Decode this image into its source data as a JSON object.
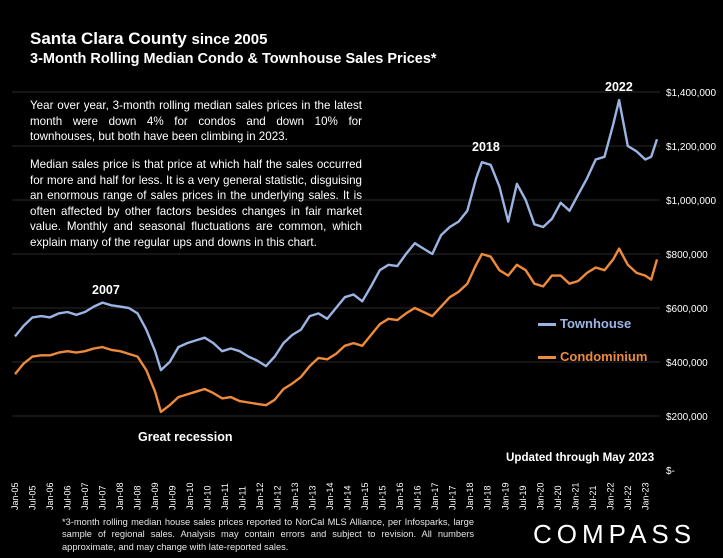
{
  "header": {
    "title": "Santa Clara County",
    "title_suffix": "since 2005",
    "subtitle": "3-Month Rolling Median Condo & Townhouse Sales Prices*"
  },
  "text": {
    "para1": "Year over year, 3-month rolling median sales prices in the latest month were down 4% for condos and down 10% for townhouses, but both have been climbing in 2023.",
    "para2": "Median sales price is that price at which half the sales occurred for more and half for less. It is a very general statistic, disguising an enormous range of sales prices in the underlying sales. It is often affected by other factors besides changes in fair market value. Monthly and seasonal fluctuations are common, which explain many of the regular ups and downs in this chart.",
    "updated": "Updated through May 2023",
    "footnote": "*3-month rolling median house sales prices reported to NorCal MLS Alliance, per Infosparks, large sample of regional sales. Analysis may contain errors and subject to revision. All numbers approximate, and may change with late-reported sales.",
    "logo": "COMPASS"
  },
  "colors": {
    "townhouse": "#9bb4e3",
    "condominium": "#ee8a3c",
    "background": "#000000",
    "gridline": "#555555"
  },
  "chart_data": {
    "type": "line",
    "grid": "horizontal",
    "ylim": [
      0,
      1400000
    ],
    "y_ticks": [
      "$-",
      "$200,000",
      "$400,000",
      "$600,000",
      "$800,000",
      "$1,000,000",
      "$1,200,000",
      "$1,400,000"
    ],
    "y_tick_values": [
      0,
      200000,
      400000,
      600000,
      800000,
      1000000,
      1200000,
      1400000
    ],
    "x_ticks": [
      "Jan-05",
      "Jul-05",
      "Jan-06",
      "Jul-06",
      "Jan-07",
      "Jul-07",
      "Jan-08",
      "Jul-08",
      "Jan-09",
      "Jul-09",
      "Jan-10",
      "Jul-10",
      "Jan-11",
      "Jul-11",
      "Jan-12",
      "Jul-12",
      "Jan-13",
      "Jul-13",
      "Jan-14",
      "Jul-14",
      "Jan-15",
      "Jul-15",
      "Jan-16",
      "Jul-16",
      "Jan-17",
      "Jul-17",
      "Jan-18",
      "Jul-18",
      "Jan-19",
      "Jul-19",
      "Jan-20",
      "Jul-20",
      "Jan-21",
      "Jul-21",
      "Jan-22",
      "Jul-22",
      "Jan-23"
    ],
    "x_range": [
      "Jan-05",
      "May-23"
    ],
    "annotations": [
      {
        "text": "2007",
        "at": "2007-07"
      },
      {
        "text": "2018",
        "at": "2018-04"
      },
      {
        "text": "2022",
        "at": "2022-04"
      },
      {
        "text": "Great recession",
        "at": "2009-06"
      }
    ],
    "legend_position": "right",
    "series": [
      {
        "name": "Townhouse",
        "color": "#9bb4e3",
        "points": [
          [
            "2005-01",
            495000
          ],
          [
            "2005-04",
            535000
          ],
          [
            "2005-07",
            565000
          ],
          [
            "2005-10",
            570000
          ],
          [
            "2006-01",
            565000
          ],
          [
            "2006-04",
            580000
          ],
          [
            "2006-07",
            585000
          ],
          [
            "2006-10",
            575000
          ],
          [
            "2007-01",
            585000
          ],
          [
            "2007-04",
            605000
          ],
          [
            "2007-07",
            620000
          ],
          [
            "2007-10",
            610000
          ],
          [
            "2008-01",
            605000
          ],
          [
            "2008-04",
            600000
          ],
          [
            "2008-07",
            580000
          ],
          [
            "2008-10",
            520000
          ],
          [
            "2009-01",
            440000
          ],
          [
            "2009-03",
            370000
          ],
          [
            "2009-06",
            400000
          ],
          [
            "2009-09",
            455000
          ],
          [
            "2009-12",
            470000
          ],
          [
            "2010-03",
            480000
          ],
          [
            "2010-06",
            490000
          ],
          [
            "2010-09",
            470000
          ],
          [
            "2010-12",
            440000
          ],
          [
            "2011-03",
            450000
          ],
          [
            "2011-06",
            440000
          ],
          [
            "2011-09",
            420000
          ],
          [
            "2011-12",
            405000
          ],
          [
            "2012-03",
            385000
          ],
          [
            "2012-06",
            420000
          ],
          [
            "2012-09",
            470000
          ],
          [
            "2012-12",
            500000
          ],
          [
            "2013-03",
            520000
          ],
          [
            "2013-06",
            570000
          ],
          [
            "2013-09",
            580000
          ],
          [
            "2013-12",
            560000
          ],
          [
            "2014-03",
            600000
          ],
          [
            "2014-06",
            640000
          ],
          [
            "2014-09",
            650000
          ],
          [
            "2014-12",
            625000
          ],
          [
            "2015-03",
            680000
          ],
          [
            "2015-06",
            740000
          ],
          [
            "2015-09",
            760000
          ],
          [
            "2015-12",
            755000
          ],
          [
            "2016-03",
            800000
          ],
          [
            "2016-06",
            840000
          ],
          [
            "2016-09",
            820000
          ],
          [
            "2016-12",
            800000
          ],
          [
            "2017-03",
            870000
          ],
          [
            "2017-06",
            900000
          ],
          [
            "2017-09",
            920000
          ],
          [
            "2017-12",
            960000
          ],
          [
            "2018-03",
            1080000
          ],
          [
            "2018-05",
            1140000
          ],
          [
            "2018-08",
            1130000
          ],
          [
            "2018-11",
            1050000
          ],
          [
            "2019-02",
            920000
          ],
          [
            "2019-05",
            1060000
          ],
          [
            "2019-08",
            1000000
          ],
          [
            "2019-11",
            910000
          ],
          [
            "2020-02",
            900000
          ],
          [
            "2020-05",
            930000
          ],
          [
            "2020-08",
            990000
          ],
          [
            "2020-11",
            960000
          ],
          [
            "2021-02",
            1020000
          ],
          [
            "2021-05",
            1080000
          ],
          [
            "2021-08",
            1150000
          ],
          [
            "2021-11",
            1160000
          ],
          [
            "2022-02",
            1280000
          ],
          [
            "2022-04",
            1370000
          ],
          [
            "2022-07",
            1200000
          ],
          [
            "2022-10",
            1180000
          ],
          [
            "2023-01",
            1150000
          ],
          [
            "2023-03",
            1160000
          ],
          [
            "2023-05",
            1225000
          ]
        ]
      },
      {
        "name": "Condominium",
        "color": "#ee8a3c",
        "points": [
          [
            "2005-01",
            355000
          ],
          [
            "2005-04",
            395000
          ],
          [
            "2005-07",
            420000
          ],
          [
            "2005-10",
            425000
          ],
          [
            "2006-01",
            425000
          ],
          [
            "2006-04",
            435000
          ],
          [
            "2006-07",
            440000
          ],
          [
            "2006-10",
            435000
          ],
          [
            "2007-01",
            440000
          ],
          [
            "2007-04",
            450000
          ],
          [
            "2007-07",
            455000
          ],
          [
            "2007-10",
            445000
          ],
          [
            "2008-01",
            440000
          ],
          [
            "2008-04",
            430000
          ],
          [
            "2008-07",
            420000
          ],
          [
            "2008-10",
            370000
          ],
          [
            "2009-01",
            290000
          ],
          [
            "2009-03",
            215000
          ],
          [
            "2009-06",
            240000
          ],
          [
            "2009-09",
            270000
          ],
          [
            "2009-12",
            280000
          ],
          [
            "2010-03",
            290000
          ],
          [
            "2010-06",
            300000
          ],
          [
            "2010-09",
            285000
          ],
          [
            "2010-12",
            265000
          ],
          [
            "2011-03",
            270000
          ],
          [
            "2011-06",
            255000
          ],
          [
            "2011-09",
            250000
          ],
          [
            "2011-12",
            245000
          ],
          [
            "2012-03",
            240000
          ],
          [
            "2012-06",
            260000
          ],
          [
            "2012-09",
            300000
          ],
          [
            "2012-12",
            320000
          ],
          [
            "2013-03",
            345000
          ],
          [
            "2013-06",
            385000
          ],
          [
            "2013-09",
            415000
          ],
          [
            "2013-12",
            410000
          ],
          [
            "2014-03",
            430000
          ],
          [
            "2014-06",
            460000
          ],
          [
            "2014-09",
            470000
          ],
          [
            "2014-12",
            460000
          ],
          [
            "2015-03",
            500000
          ],
          [
            "2015-06",
            540000
          ],
          [
            "2015-09",
            560000
          ],
          [
            "2015-12",
            555000
          ],
          [
            "2016-03",
            580000
          ],
          [
            "2016-06",
            600000
          ],
          [
            "2016-09",
            585000
          ],
          [
            "2016-12",
            570000
          ],
          [
            "2017-03",
            605000
          ],
          [
            "2017-06",
            640000
          ],
          [
            "2017-09",
            660000
          ],
          [
            "2017-12",
            690000
          ],
          [
            "2018-03",
            760000
          ],
          [
            "2018-05",
            800000
          ],
          [
            "2018-08",
            790000
          ],
          [
            "2018-11",
            740000
          ],
          [
            "2019-02",
            720000
          ],
          [
            "2019-05",
            760000
          ],
          [
            "2019-08",
            740000
          ],
          [
            "2019-11",
            690000
          ],
          [
            "2020-02",
            680000
          ],
          [
            "2020-05",
            720000
          ],
          [
            "2020-08",
            720000
          ],
          [
            "2020-11",
            690000
          ],
          [
            "2021-02",
            700000
          ],
          [
            "2021-05",
            730000
          ],
          [
            "2021-08",
            750000
          ],
          [
            "2021-11",
            740000
          ],
          [
            "2022-02",
            780000
          ],
          [
            "2022-04",
            820000
          ],
          [
            "2022-07",
            760000
          ],
          [
            "2022-10",
            730000
          ],
          [
            "2023-01",
            720000
          ],
          [
            "2023-03",
            705000
          ],
          [
            "2023-05",
            780000
          ]
        ]
      }
    ]
  }
}
